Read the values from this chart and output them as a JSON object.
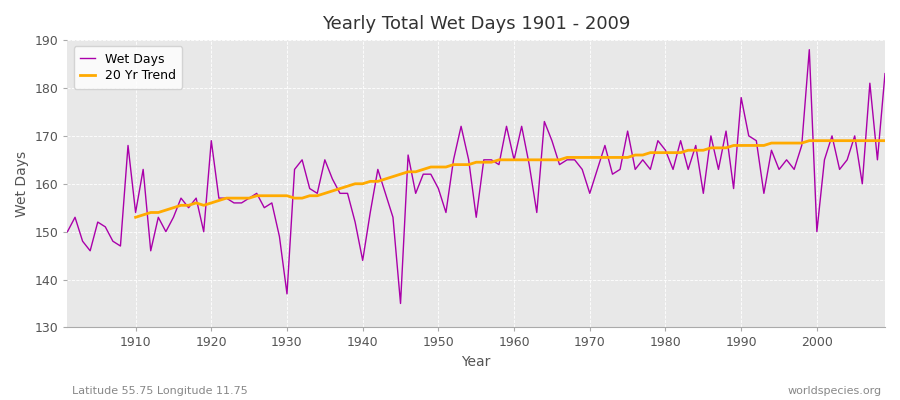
{
  "title": "Yearly Total Wet Days 1901 - 2009",
  "xlabel": "Year",
  "ylabel": "Wet Days",
  "lat_lon_label": "Latitude 55.75 Longitude 11.75",
  "source_label": "worldspecies.org",
  "wet_days_color": "#aa00aa",
  "trend_color": "#ffaa00",
  "plot_bg_color": "#e8e8e8",
  "fig_bg_color": "#ffffff",
  "ylim": [
    130,
    190
  ],
  "xlim": [
    1901,
    2009
  ],
  "years": [
    1901,
    1902,
    1903,
    1904,
    1905,
    1906,
    1907,
    1908,
    1909,
    1910,
    1911,
    1912,
    1913,
    1914,
    1915,
    1916,
    1917,
    1918,
    1919,
    1920,
    1921,
    1922,
    1923,
    1924,
    1925,
    1926,
    1927,
    1928,
    1929,
    1930,
    1931,
    1932,
    1933,
    1934,
    1935,
    1936,
    1937,
    1938,
    1939,
    1940,
    1941,
    1942,
    1943,
    1944,
    1945,
    1946,
    1947,
    1948,
    1949,
    1950,
    1951,
    1952,
    1953,
    1954,
    1955,
    1956,
    1957,
    1958,
    1959,
    1960,
    1961,
    1962,
    1963,
    1964,
    1965,
    1966,
    1967,
    1968,
    1969,
    1970,
    1971,
    1972,
    1973,
    1974,
    1975,
    1976,
    1977,
    1978,
    1979,
    1980,
    1981,
    1982,
    1983,
    1984,
    1985,
    1986,
    1987,
    1988,
    1989,
    1990,
    1991,
    1992,
    1993,
    1994,
    1995,
    1996,
    1997,
    1998,
    1999,
    2000,
    2001,
    2002,
    2003,
    2004,
    2005,
    2006,
    2007,
    2008,
    2009
  ],
  "wet_days": [
    150,
    153,
    148,
    146,
    152,
    151,
    148,
    147,
    168,
    154,
    163,
    146,
    153,
    150,
    153,
    157,
    155,
    157,
    150,
    169,
    157,
    157,
    156,
    156,
    157,
    158,
    155,
    156,
    149,
    137,
    163,
    165,
    159,
    158,
    165,
    161,
    158,
    158,
    152,
    144,
    154,
    163,
    158,
    153,
    135,
    166,
    158,
    162,
    162,
    159,
    154,
    165,
    172,
    165,
    153,
    165,
    165,
    164,
    172,
    165,
    172,
    164,
    154,
    173,
    169,
    164,
    165,
    165,
    163,
    158,
    163,
    168,
    162,
    163,
    171,
    163,
    165,
    163,
    169,
    167,
    163,
    169,
    163,
    168,
    158,
    170,
    163,
    171,
    159,
    178,
    170,
    169,
    158,
    167,
    163,
    165,
    163,
    168,
    188,
    150,
    165,
    170,
    163,
    165,
    170,
    160,
    181,
    165,
    183
  ],
  "trend_start_year": 1910,
  "trend_values": [
    153.0,
    153.5,
    154.0,
    154.0,
    154.5,
    155.0,
    155.5,
    155.5,
    156.0,
    155.5,
    156.0,
    156.5,
    157.0,
    157.0,
    157.0,
    157.0,
    157.5,
    157.5,
    157.5,
    157.5,
    157.5,
    157.0,
    157.0,
    157.5,
    157.5,
    158.0,
    158.5,
    159.0,
    159.5,
    160.0,
    160.0,
    160.5,
    160.5,
    161.0,
    161.5,
    162.0,
    162.5,
    162.5,
    163.0,
    163.5,
    163.5,
    163.5,
    164.0,
    164.0,
    164.0,
    164.5,
    164.5,
    164.5,
    165.0,
    165.0,
    165.0,
    165.0,
    165.0,
    165.0,
    165.0,
    165.0,
    165.0,
    165.5,
    165.5,
    165.5,
    165.5,
    165.5,
    165.5,
    165.5,
    165.5,
    165.5,
    166.0,
    166.0,
    166.5,
    166.5,
    166.5,
    166.5,
    166.5,
    167.0,
    167.0,
    167.0,
    167.5,
    167.5,
    167.5,
    168.0,
    168.0,
    168.0,
    168.0,
    168.0,
    168.5,
    168.5,
    168.5,
    168.5,
    168.5,
    169.0,
    169.0,
    169.0,
    169.0,
    169.0,
    169.0,
    169.0,
    169.0,
    169.0,
    169.0,
    169.0
  ]
}
